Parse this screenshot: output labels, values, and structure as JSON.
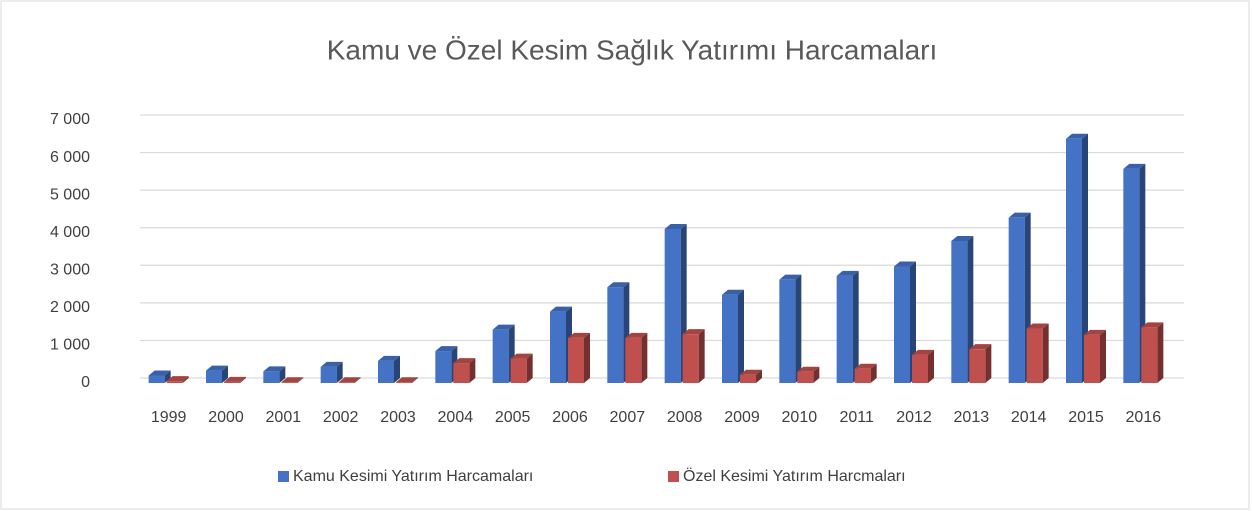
{
  "chart_data": {
    "type": "bar",
    "title": "Kamu ve Özel Kesim Sağlık Yatırımı Harcamaları",
    "categories": [
      "1999",
      "2000",
      "2001",
      "2002",
      "2003",
      "2004",
      "2005",
      "2006",
      "2007",
      "2008",
      "2009",
      "2010",
      "2011",
      "2012",
      "2013",
      "2014",
      "2015",
      "2016"
    ],
    "series": [
      {
        "name": "Kamu Kesimi Yatırım Harcamaları",
        "color": "#4472c4",
        "values": [
          200,
          330,
          310,
          430,
          590,
          850,
          1420,
          1900,
          2550,
          4100,
          2350,
          2750,
          2850,
          3100,
          3780,
          4400,
          6500,
          5700
        ]
      },
      {
        "name": "Özel Kesimi Yatırım Harcmaları",
        "color": "#c0504d",
        "values": [
          50,
          30,
          20,
          20,
          20,
          530,
          650,
          1200,
          1200,
          1300,
          220,
          300,
          380,
          750,
          900,
          1450,
          1280,
          1480
        ]
      }
    ],
    "ylim": [
      0,
      7000
    ],
    "yticks": [
      0,
      {
        "value": 1000,
        "label": "1 000"
      },
      {
        "value": 2000,
        "label": "2 000"
      },
      {
        "value": 3000,
        "label": "3 000"
      },
      {
        "value": 4000,
        "label": "4 000"
      },
      {
        "value": 5000,
        "label": "5 000"
      },
      {
        "value": 6000,
        "label": "6 000"
      },
      {
        "value": 7000,
        "label": "7 000"
      }
    ],
    "grid": true,
    "legend": "bottom"
  }
}
